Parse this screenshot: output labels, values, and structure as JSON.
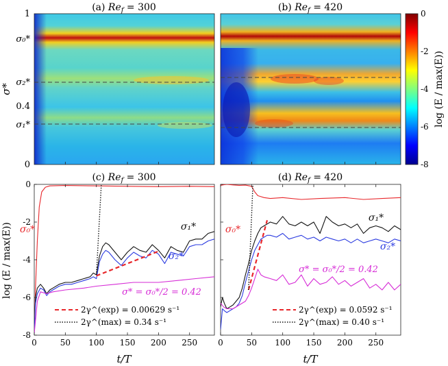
{
  "figure": {
    "panels": {
      "a": {
        "title_prefix": "(a) ",
        "title_var": "Re",
        "title_sub": "f",
        "title_suffix": " = 300"
      },
      "b": {
        "title_prefix": "(b) ",
        "title_var": "Re",
        "title_sub": "f",
        "title_suffix": " = 420"
      },
      "c": {
        "title_prefix": "(c) ",
        "title_var": "Re",
        "title_sub": "f",
        "title_suffix": " = 300"
      },
      "d": {
        "title_prefix": "(d) ",
        "title_var": "Re",
        "title_sub": "f",
        "title_suffix": " = 420"
      }
    },
    "heatmap_ylabel": "σ*",
    "heatmap_ytick_labels": [
      "1",
      "σ₀*",
      "σ₂*",
      "0.4",
      "σ₁*",
      "0"
    ],
    "colorbar": {
      "label": "log (E / max(E))",
      "ticks": [
        "0",
        "-2",
        "-4",
        "-6",
        "-8"
      ]
    },
    "xlabel": "t/T",
    "ylabel_bottom": "log (E / max(E))",
    "annotations_c": {
      "sigma0": "σ₀*",
      "sigma1": "σ₁*",
      "sigma2": "σ₂*",
      "half": "σ* = σ₀*/2 = 0.42",
      "legend_exp": "2γ^(exp)  =  0.00629 s⁻¹",
      "legend_max": "2γ^(max)  =  0.34 s⁻¹"
    },
    "annotations_d": {
      "sigma0": "σ₀*",
      "sigma1": "σ₁*",
      "sigma2": "σ₂*",
      "half": "σ* = σ₀*/2 = 0.42",
      "legend_exp": "2γ^(exp)  =  0.0592 s⁻¹",
      "legend_max": "2γ^(max)  =  0.40 s⁻¹"
    }
  },
  "chart_data": [
    {
      "type": "heatmap",
      "panel": "a",
      "title": "(a) Re_f = 300",
      "x": "t/T",
      "xlim": [
        0,
        290
      ],
      "ylabel": "σ*",
      "ylim": [
        0,
        1
      ],
      "ridges_sigma": {
        "sigma0": 0.84,
        "sigma2": 0.57,
        "sigma1": 0.31
      },
      "colorbar_range": [
        -8,
        0
      ]
    },
    {
      "type": "heatmap",
      "panel": "b",
      "title": "(b) Re_f = 420",
      "x": "t/T",
      "xlim": [
        0,
        290
      ],
      "ylim": [
        0,
        1
      ],
      "ridges_sigma": {
        "sigma0": 0.84,
        "sigma2": 0.57,
        "sigma1": 0.31
      },
      "colorbar_range": [
        -8,
        0
      ]
    },
    {
      "type": "line",
      "panel": "c",
      "title": "(c) Re_f = 300",
      "xlabel": "t/T",
      "ylabel": "log (E / max(E))",
      "xlim": [
        0,
        290
      ],
      "ylim": [
        -8,
        0
      ],
      "xticks": [
        0,
        50,
        100,
        150,
        200,
        250
      ],
      "yticks": [
        0,
        -2,
        -4,
        -6,
        -8
      ],
      "series": [
        {
          "name": "σ₀*",
          "color": "#e8262a",
          "x": [
            0,
            2,
            5,
            8,
            12,
            18,
            25,
            50,
            100,
            150,
            200,
            250,
            290
          ],
          "y": [
            -7.9,
            -5.5,
            -3.0,
            -1.2,
            -0.4,
            -0.15,
            -0.08,
            -0.06,
            -0.08,
            -0.1,
            -0.12,
            -0.1,
            -0.12
          ]
        },
        {
          "name": "σ₁*",
          "color": "#111111",
          "x": [
            0,
            2,
            5,
            10,
            15,
            20,
            25,
            30,
            40,
            50,
            60,
            70,
            80,
            90,
            95,
            100,
            105,
            110,
            115,
            120,
            130,
            140,
            150,
            160,
            170,
            180,
            190,
            200,
            210,
            220,
            230,
            240,
            250,
            260,
            270,
            280,
            290
          ],
          "y": [
            -7.8,
            -6.0,
            -5.5,
            -5.3,
            -5.5,
            -5.8,
            -5.6,
            -5.5,
            -5.3,
            -5.2,
            -5.2,
            -5.1,
            -5.0,
            -4.9,
            -4.7,
            -4.8,
            -3.8,
            -3.3,
            -3.1,
            -3.2,
            -3.6,
            -4.0,
            -3.6,
            -3.3,
            -3.5,
            -3.6,
            -3.2,
            -3.5,
            -3.9,
            -3.3,
            -3.5,
            -3.6,
            -3.0,
            -2.9,
            -2.9,
            -2.6,
            -2.5
          ]
        },
        {
          "name": "σ₂*",
          "color": "#2a3ae0",
          "x": [
            0,
            2,
            5,
            10,
            15,
            20,
            25,
            30,
            40,
            50,
            60,
            70,
            80,
            90,
            95,
            100,
            105,
            110,
            115,
            120,
            130,
            140,
            150,
            160,
            170,
            180,
            190,
            200,
            210,
            220,
            230,
            240,
            250,
            260,
            270,
            280,
            290
          ],
          "y": [
            -7.9,
            -6.3,
            -5.8,
            -5.5,
            -5.6,
            -5.9,
            -5.7,
            -5.6,
            -5.4,
            -5.3,
            -5.3,
            -5.2,
            -5.1,
            -5.0,
            -4.9,
            -5.0,
            -4.1,
            -3.7,
            -3.5,
            -3.6,
            -4.0,
            -4.3,
            -3.9,
            -3.6,
            -3.8,
            -3.9,
            -3.5,
            -3.7,
            -4.2,
            -3.6,
            -3.7,
            -3.8,
            -3.3,
            -3.2,
            -3.2,
            -3.0,
            -2.9
          ]
        },
        {
          "name": "σ* = σ₀*/2 = 0.42",
          "color": "#d62ad6",
          "x": [
            0,
            5,
            10,
            20,
            30,
            50,
            80,
            100,
            130,
            160,
            200,
            230,
            260,
            290
          ],
          "y": [
            -7.9,
            -6.2,
            -5.7,
            -5.8,
            -5.7,
            -5.6,
            -5.5,
            -5.4,
            -5.3,
            -5.2,
            -5.2,
            -5.1,
            -5.0,
            -4.9
          ]
        },
        {
          "name": "2γ^(exp) = 0.00629 s⁻¹",
          "color": "#e8262a",
          "dash": true,
          "x": [
            100,
            200
          ],
          "y": [
            -4.85,
            -3.55
          ]
        },
        {
          "name": "2γ^(max) = 0.34 s⁻¹",
          "color": "#111111",
          "dotted": true,
          "x": [
            100,
            108
          ],
          "y": [
            -4.8,
            0
          ]
        }
      ]
    },
    {
      "type": "line",
      "panel": "d",
      "title": "(d) Re_f = 420",
      "xlabel": "t/T",
      "xlim": [
        0,
        290
      ],
      "ylim": [
        -8,
        0
      ],
      "xticks": [
        0,
        50,
        100,
        150,
        200,
        250
      ],
      "yticks": [
        0,
        -2,
        -4,
        -6,
        -8
      ],
      "series": [
        {
          "name": "σ₀*",
          "color": "#e8262a",
          "x": [
            0,
            5,
            10,
            20,
            30,
            40,
            50,
            55,
            60,
            70,
            80,
            100,
            130,
            160,
            200,
            230,
            260,
            290
          ],
          "y": [
            -0.05,
            -0.02,
            0,
            -0.03,
            -0.05,
            -0.04,
            -0.1,
            -0.4,
            -0.6,
            -0.7,
            -0.75,
            -0.7,
            -0.8,
            -0.75,
            -0.7,
            -0.8,
            -0.75,
            -0.7
          ]
        },
        {
          "name": "σ₁*",
          "color": "#111111",
          "x": [
            0,
            3,
            6,
            10,
            15,
            20,
            25,
            30,
            35,
            40,
            45,
            50,
            55,
            60,
            65,
            70,
            75,
            80,
            90,
            100,
            110,
            120,
            130,
            140,
            150,
            160,
            170,
            180,
            190,
            200,
            210,
            220,
            230,
            240,
            250,
            260,
            270,
            280,
            290
          ],
          "y": [
            -6.5,
            -6.0,
            -6.3,
            -6.6,
            -6.5,
            -6.4,
            -6.2,
            -6.0,
            -5.5,
            -4.8,
            -4.2,
            -3.5,
            -3.0,
            -2.6,
            -2.3,
            -2.2,
            -2.1,
            -2.0,
            -2.1,
            -1.7,
            -2.1,
            -2.2,
            -2.0,
            -2.2,
            -2.0,
            -2.6,
            -1.7,
            -2.0,
            -2.2,
            -2.1,
            -2.3,
            -2.1,
            -2.6,
            -2.3,
            -2.2,
            -2.3,
            -2.5,
            -2.2,
            -2.4
          ]
        },
        {
          "name": "σ₂*",
          "color": "#2a3ae0",
          "x": [
            0,
            3,
            6,
            10,
            15,
            20,
            25,
            30,
            35,
            40,
            45,
            50,
            55,
            60,
            65,
            70,
            75,
            80,
            90,
            100,
            110,
            120,
            130,
            140,
            150,
            160,
            170,
            180,
            190,
            200,
            210,
            220,
            230,
            240,
            250,
            260,
            270,
            280,
            290
          ],
          "y": [
            -7.7,
            -6.6,
            -6.7,
            -6.8,
            -6.7,
            -6.6,
            -6.5,
            -6.3,
            -5.9,
            -5.2,
            -4.6,
            -4.0,
            -3.5,
            -3.2,
            -2.9,
            -2.8,
            -2.7,
            -2.7,
            -2.8,
            -2.6,
            -2.9,
            -2.8,
            -2.7,
            -2.9,
            -2.8,
            -3.0,
            -2.8,
            -2.9,
            -3.0,
            -2.9,
            -3.1,
            -2.9,
            -3.1,
            -3.0,
            -2.9,
            -3.0,
            -3.1,
            -2.9,
            -3.0
          ]
        },
        {
          "name": "σ* = σ₀*/2 = 0.42",
          "color": "#d62ad6",
          "x": [
            0,
            5,
            10,
            20,
            30,
            40,
            45,
            50,
            55,
            60,
            65,
            70,
            80,
            90,
            100,
            110,
            120,
            130,
            140,
            150,
            160,
            170,
            180,
            190,
            200,
            210,
            220,
            230,
            240,
            250,
            260,
            270,
            280,
            290
          ],
          "y": [
            -6.3,
            -6.5,
            -6.6,
            -6.6,
            -6.4,
            -6.2,
            -5.9,
            -5.5,
            -5.0,
            -4.5,
            -4.8,
            -4.9,
            -5.0,
            -5.1,
            -4.8,
            -5.3,
            -5.2,
            -4.8,
            -5.4,
            -5.0,
            -5.3,
            -5.2,
            -4.9,
            -5.3,
            -5.1,
            -5.4,
            -5.2,
            -5.0,
            -5.5,
            -5.3,
            -5.6,
            -5.2,
            -5.6,
            -5.3
          ]
        },
        {
          "name": "2γ^(exp) = 0.0592 s⁻¹",
          "color": "#e8262a",
          "dash": true,
          "x": [
            45,
            75
          ],
          "y": [
            -5.6,
            -1.9
          ]
        },
        {
          "name": "2γ^(max) = 0.40 s⁻¹",
          "color": "#111111",
          "dotted": true,
          "x": [
            45,
            52
          ],
          "y": [
            -5.6,
            0
          ]
        }
      ]
    }
  ]
}
